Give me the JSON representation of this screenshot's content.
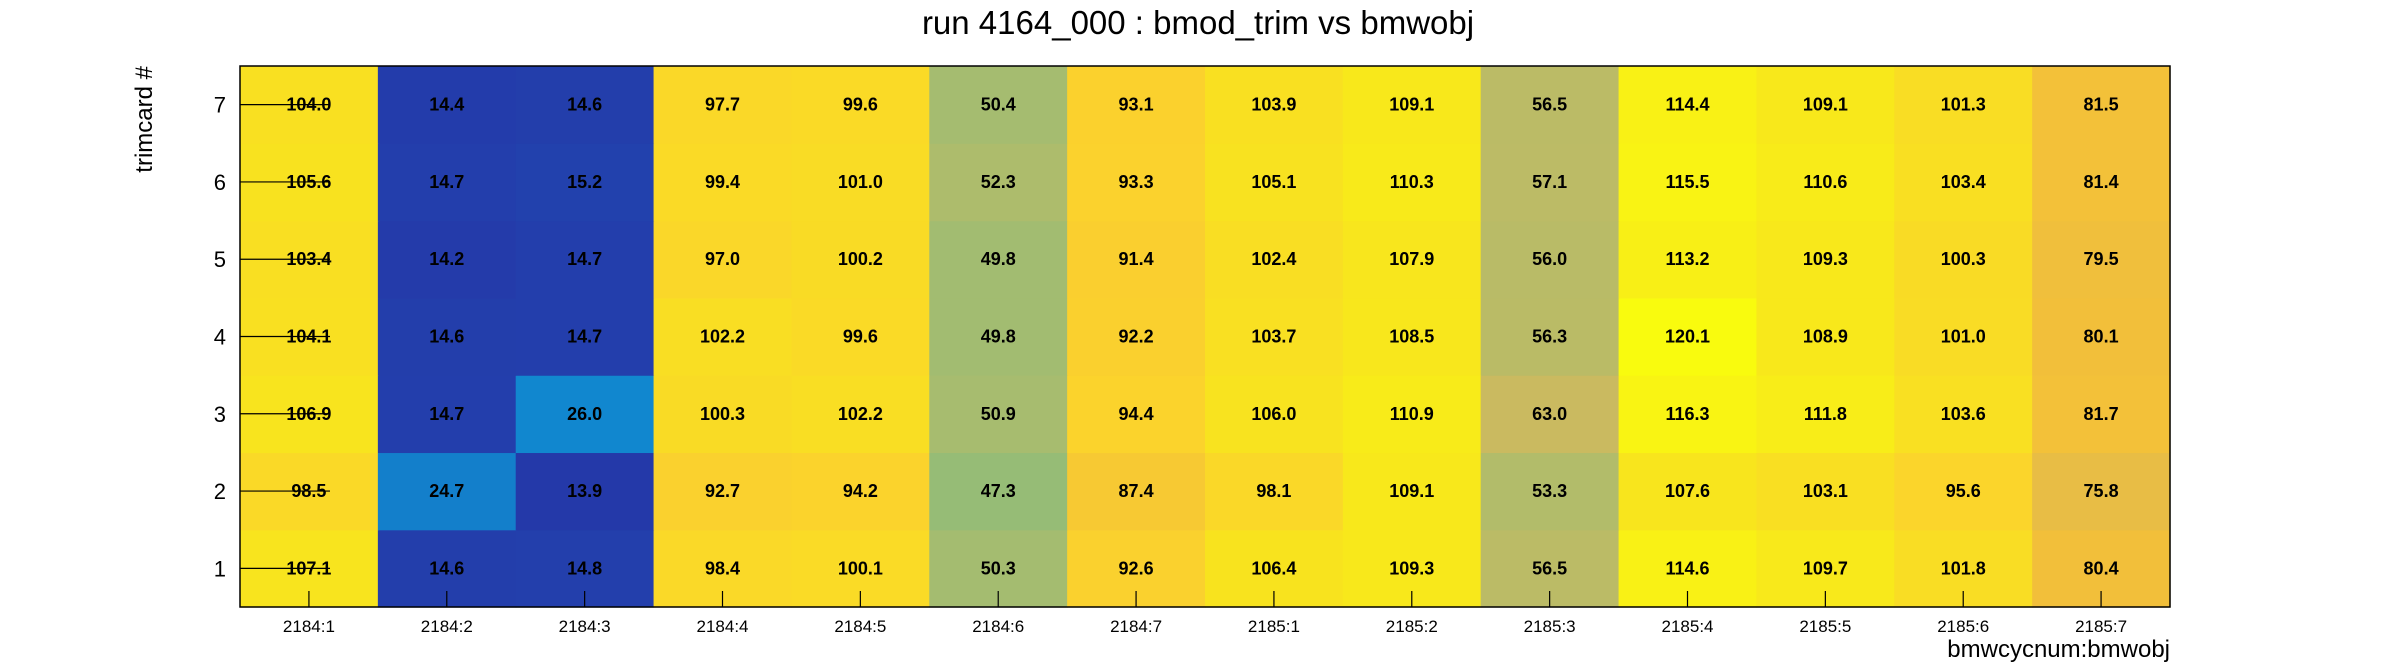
{
  "chart_data": {
    "type": "heatmap",
    "title": "run 4164_000 : bmod_trim vs bmwobj",
    "xlabel": "bmwcycnum:bmwobj",
    "ylabel": "trimcard #",
    "x_categories": [
      "2184:1",
      "2184:2",
      "2184:3",
      "2184:4",
      "2184:5",
      "2184:6",
      "2184:7",
      "2185:1",
      "2185:2",
      "2185:3",
      "2185:4",
      "2185:5",
      "2185:6",
      "2185:7"
    ],
    "y_categories": [
      "1",
      "2",
      "3",
      "4",
      "5",
      "6",
      "7"
    ],
    "values": [
      [
        107.1,
        14.6,
        14.8,
        98.4,
        100.1,
        50.3,
        92.6,
        106.4,
        109.3,
        56.5,
        114.6,
        109.7,
        101.8,
        80.4
      ],
      [
        98.5,
        24.7,
        13.9,
        92.7,
        94.2,
        47.3,
        87.4,
        98.1,
        109.1,
        53.3,
        107.6,
        103.1,
        95.6,
        75.8
      ],
      [
        106.9,
        14.7,
        26.0,
        100.3,
        102.2,
        50.9,
        94.4,
        106.0,
        110.9,
        63.0,
        116.3,
        111.8,
        103.6,
        81.7
      ],
      [
        104.1,
        14.6,
        14.7,
        102.2,
        99.6,
        49.8,
        92.2,
        103.7,
        108.5,
        56.3,
        120.1,
        108.9,
        101.0,
        80.1
      ],
      [
        103.4,
        14.2,
        14.7,
        97.0,
        100.2,
        49.8,
        91.4,
        102.4,
        107.9,
        56.0,
        113.2,
        109.3,
        100.3,
        79.5
      ],
      [
        105.6,
        14.7,
        15.2,
        99.4,
        101.0,
        52.3,
        93.3,
        105.1,
        110.3,
        57.1,
        115.5,
        110.6,
        103.4,
        81.4
      ],
      [
        104.0,
        14.4,
        14.6,
        97.7,
        99.6,
        50.4,
        93.1,
        103.9,
        109.1,
        56.5,
        114.4,
        109.1,
        101.3,
        81.5
      ]
    ],
    "legend": "none",
    "grid": false,
    "colors": [
      "#2439a9",
      "#0f8fd3",
      "#77bd83",
      "#b4bc69",
      "#d4b95c",
      "#f2bf3a",
      "#fbd22d",
      "#f8e41e",
      "#f9fb0e"
    ]
  }
}
